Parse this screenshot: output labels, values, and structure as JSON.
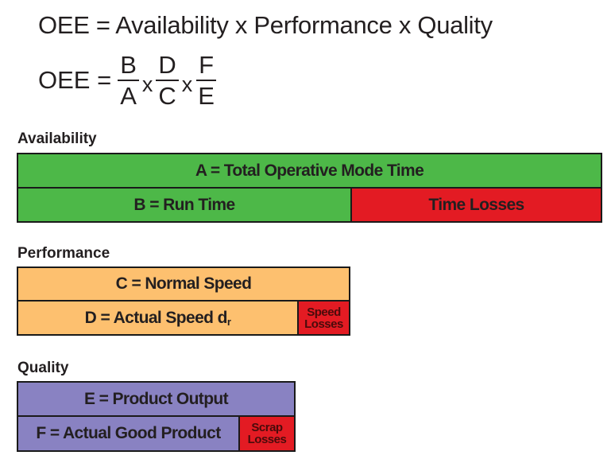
{
  "formula_line_1": "OEE = Availability x Performance x Quality",
  "formula_line_2": {
    "lhs": "OEE =",
    "fractions": [
      {
        "num": "B",
        "den": "A"
      },
      {
        "num": "D",
        "den": "C"
      },
      {
        "num": "F",
        "den": "E"
      }
    ],
    "operator": "x"
  },
  "availability": {
    "title": "Availability",
    "row1": "A = Total Operative Mode Time",
    "row2": {
      "left": "B = Run Time",
      "right": "Time Losses"
    }
  },
  "performance": {
    "title": "Performance",
    "row1": "C = Normal Speed",
    "row2": {
      "left_main": "D = Actual Speed d",
      "left_sub": "r",
      "right_line1": "Speed",
      "right_line2": "Losses"
    }
  },
  "quality": {
    "title": "Quality",
    "row1": "E = Product Output",
    "row2": {
      "left": "F = Actual Good Product",
      "right_line1": "Scrap",
      "right_line2": "Losses"
    }
  },
  "colors": {
    "green": "#4db848",
    "red": "#e31b23",
    "orange": "#fdc06f",
    "purple": "#8982c2"
  }
}
